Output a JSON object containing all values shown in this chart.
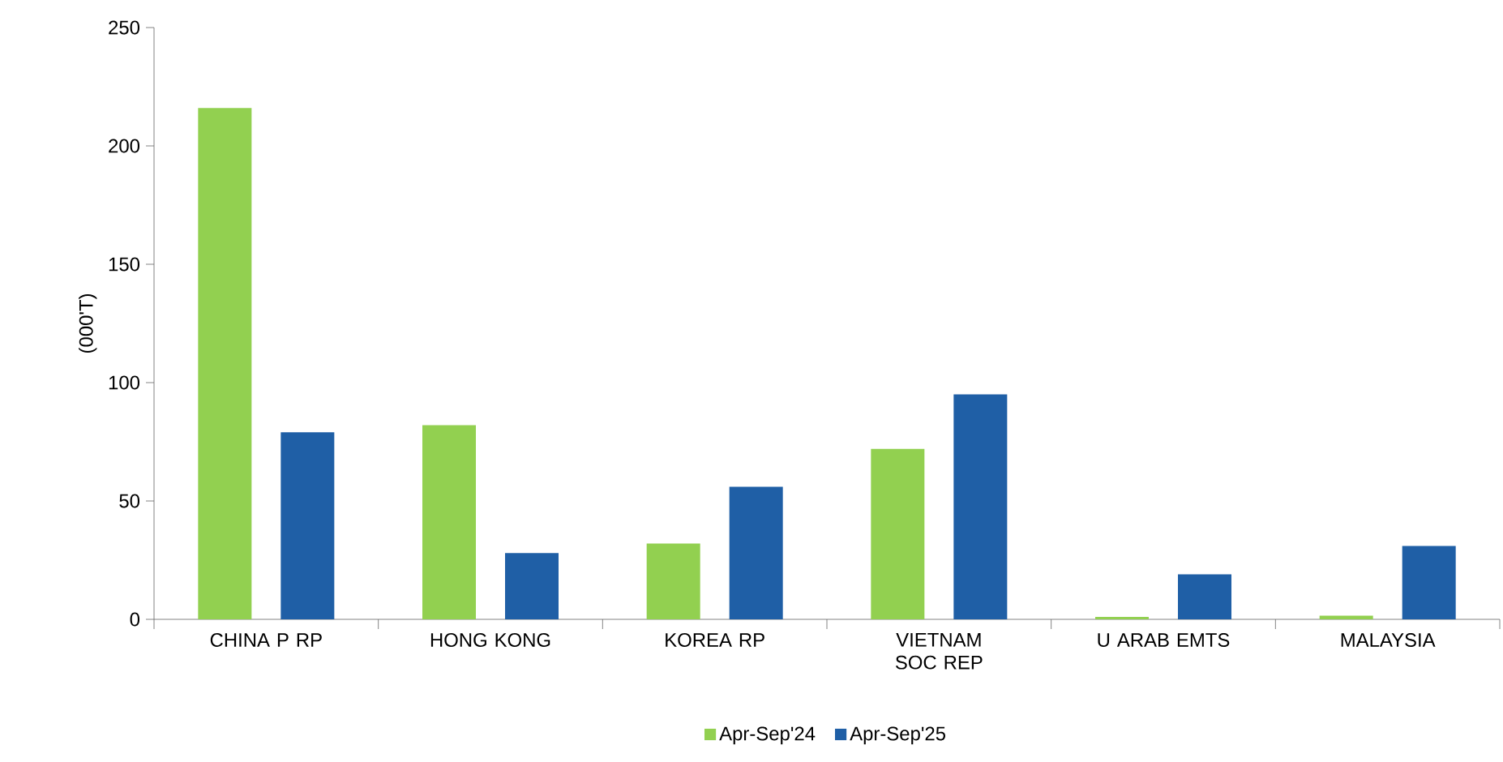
{
  "chart_data": {
    "type": "bar",
    "ylabel": "(000'T)",
    "categories": [
      "CHINA P RP",
      "HONG KONG",
      "KOREA RP",
      "VIETNAM SOC REP",
      "U ARAB EMTS",
      "MALAYSIA"
    ],
    "series": [
      {
        "name": "Apr-Sep'24",
        "color": "#92d050",
        "values": [
          216,
          82,
          32,
          72,
          1,
          1.5
        ]
      },
      {
        "name": "Apr-Sep'25",
        "color": "#1f5fa6",
        "values": [
          79,
          28,
          56,
          95,
          19,
          31
        ]
      }
    ],
    "ylim": [
      0,
      250
    ],
    "yticks": [
      0,
      50,
      100,
      150,
      200,
      250
    ],
    "grid": false,
    "legend": "bottom"
  }
}
